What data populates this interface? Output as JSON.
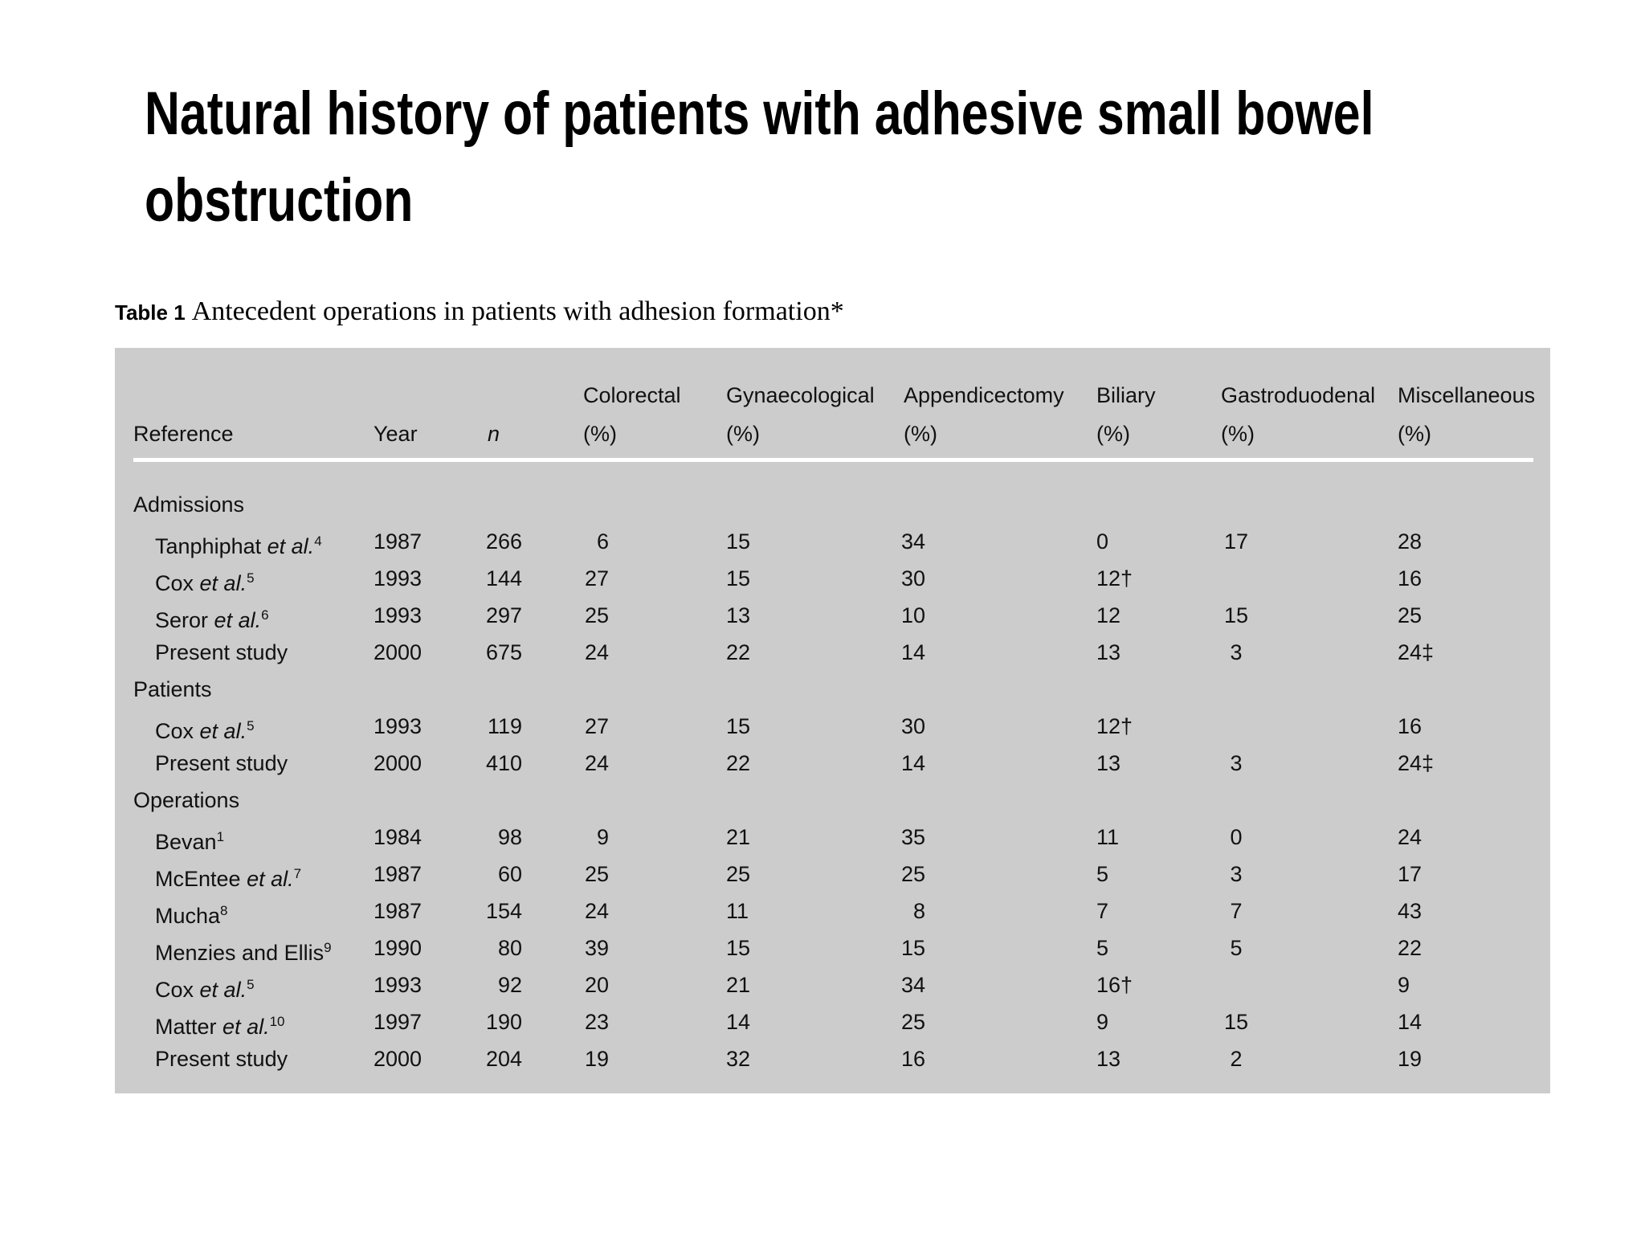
{
  "slide": {
    "title": "Natural history of patients with adhesive small bowel obstruction"
  },
  "table": {
    "caption": {
      "label": "Table 1",
      "text": "Antecedent operations in patients with adhesion formation*"
    },
    "header": [
      {
        "label": "Reference"
      },
      {
        "label": "Year"
      },
      {
        "label": "n"
      },
      {
        "label": "Colorectal",
        "unit": "(%)"
      },
      {
        "label": "Gynaecological",
        "unit": "(%)"
      },
      {
        "label": "Appendicectomy",
        "unit": "(%)"
      },
      {
        "label": "Biliary",
        "unit": "(%)"
      },
      {
        "label": "Gastroduodenal",
        "unit": "(%)"
      },
      {
        "label": "Miscellaneous",
        "unit": "(%)"
      }
    ],
    "sections": [
      {
        "label": "Admissions",
        "rows": [
          {
            "reference": {
              "name": "Tanphiphat",
              "etal": "et al.",
              "ref": "4"
            },
            "cells": [
              1987,
              266,
              6,
              15,
              34,
              0,
              17,
              28
            ]
          },
          {
            "reference": {
              "name": "Cox",
              "etal": "et al.",
              "ref": "5"
            },
            "cells": [
              1993,
              144,
              27,
              15,
              30,
              "12†",
              null,
              16
            ]
          },
          {
            "reference": {
              "name": "Seror",
              "etal": "et al.",
              "ref": "6"
            },
            "cells": [
              1993,
              297,
              25,
              13,
              10,
              12,
              15,
              25
            ]
          },
          {
            "reference": {
              "name": "Present study"
            },
            "cells": [
              2000,
              675,
              24,
              22,
              14,
              13,
              3,
              "24‡"
            ]
          }
        ]
      },
      {
        "label": "Patients",
        "rows": [
          {
            "reference": {
              "name": "Cox",
              "etal": "et al.",
              "ref": "5"
            },
            "cells": [
              1993,
              119,
              27,
              15,
              30,
              "12†",
              null,
              16
            ]
          },
          {
            "reference": {
              "name": "Present study"
            },
            "cells": [
              2000,
              410,
              24,
              22,
              14,
              13,
              3,
              "24‡"
            ]
          }
        ]
      },
      {
        "label": "Operations",
        "rows": [
          {
            "reference": {
              "name": "Bevan",
              "ref": "1"
            },
            "cells": [
              1984,
              98,
              9,
              21,
              35,
              11,
              0,
              24
            ]
          },
          {
            "reference": {
              "name": "McEntee",
              "etal": "et al.",
              "ref": "7"
            },
            "cells": [
              1987,
              60,
              25,
              25,
              25,
              5,
              3,
              17
            ]
          },
          {
            "reference": {
              "name": "Mucha",
              "ref": "8"
            },
            "cells": [
              1987,
              154,
              24,
              11,
              8,
              7,
              7,
              43
            ]
          },
          {
            "reference": {
              "name": "Menzies and Ellis",
              "ref": "9"
            },
            "cells": [
              1990,
              80,
              39,
              15,
              15,
              5,
              5,
              22
            ]
          },
          {
            "reference": {
              "name": "Cox",
              "etal": "et al.",
              "ref": "5"
            },
            "cells": [
              1993,
              92,
              20,
              21,
              34,
              "16†",
              null,
              9
            ]
          },
          {
            "reference": {
              "name": "Matter",
              "etal": "et al.",
              "ref": "10"
            },
            "cells": [
              1997,
              190,
              23,
              14,
              25,
              9,
              15,
              14
            ]
          },
          {
            "reference": {
              "name": "Present study"
            },
            "cells": [
              2000,
              204,
              19,
              32,
              16,
              13,
              2,
              19
            ]
          }
        ]
      }
    ]
  }
}
